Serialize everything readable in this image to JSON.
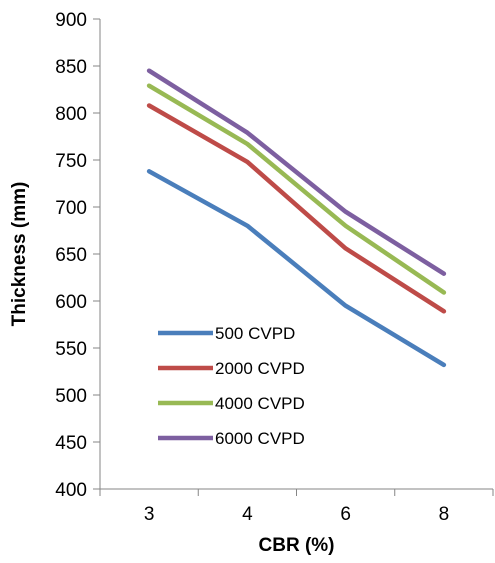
{
  "chart_data": {
    "type": "line",
    "categories": [
      "3",
      "4",
      "6",
      "8"
    ],
    "series": [
      {
        "name": "500 CVPD",
        "values": [
          738,
          680,
          595,
          532
        ],
        "color": "#4A7EBB"
      },
      {
        "name": "2000 CVPD",
        "values": [
          808,
          748,
          656,
          589
        ],
        "color": "#BE4B48"
      },
      {
        "name": "4000 CVPD",
        "values": [
          829,
          767,
          680,
          609
        ],
        "color": "#98B954"
      },
      {
        "name": "6000 CVPD",
        "values": [
          845,
          779,
          695,
          629
        ],
        "color": "#7D5FA0"
      }
    ],
    "title": "",
    "xlabel": "CBR  (%)",
    "ylabel": "Thickness (mm)",
    "ylim": [
      400,
      900
    ],
    "yticks": [
      "400",
      "450",
      "500",
      "550",
      "600",
      "650",
      "700",
      "750",
      "800",
      "850",
      "900"
    ],
    "grid": false,
    "legend_position": "lower-left inside plot"
  }
}
